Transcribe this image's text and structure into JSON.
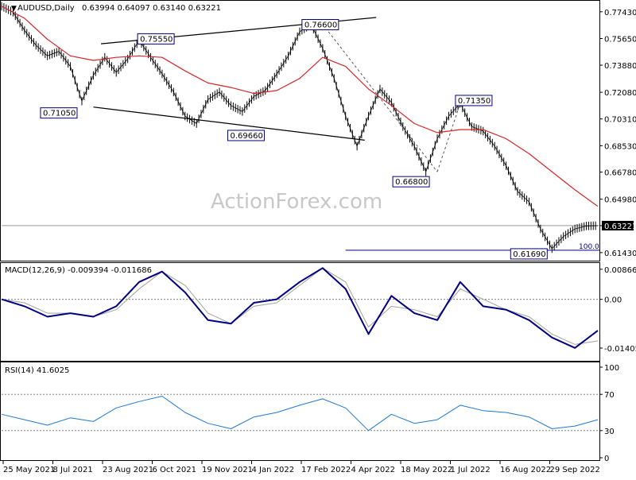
{
  "header": {
    "symbol": "AUDUSD,Daily",
    "ohlc": "0.63994 0.64097 0.63140 0.63221"
  },
  "watermark": "ActionForex.com",
  "colors": {
    "price_line": "#000000",
    "moving_average": "#d62728",
    "macd_line": "#000080",
    "macd_signal": "#a0a0a0",
    "rsi_line": "#1f77d0",
    "zero_line": "#808080",
    "label_border": "#000080"
  },
  "chart_data": [
    {
      "type": "line",
      "panel": "price",
      "title": "AUDUSD,Daily",
      "x_labels": [
        "25 May 2021",
        "8 Jul 2021",
        "23 Aug 2021",
        "6 Oct 2021",
        "19 Nov 2021",
        "4 Jan 2022",
        "17 Feb 2022",
        "4 Apr 2022",
        "18 May 2022",
        "1 Jul 2022",
        "16 Aug 2022",
        "29 Sep 2022"
      ],
      "y_ticks": [
        "0.77430",
        "0.75650",
        "0.73880",
        "0.72080",
        "0.70310",
        "0.68530",
        "0.66780",
        "0.64980",
        "0.63221",
        "0.61430"
      ],
      "ylim": [
        0.61,
        0.78
      ],
      "current_price": 0.63221,
      "series": [
        {
          "x": [
            0,
            6,
            12,
            18,
            24,
            30,
            36,
            42,
            48,
            54,
            60,
            66,
            72,
            78,
            84,
            90,
            96,
            102,
            108,
            114,
            120,
            126,
            132,
            138,
            144,
            150,
            156,
            162,
            168,
            174,
            180,
            186,
            192,
            198,
            204,
            210,
            216,
            222,
            228,
            234,
            240,
            246,
            252,
            258,
            264,
            270,
            276,
            282,
            288,
            294,
            300,
            306,
            312
          ],
          "values": [
            0.778,
            0.774,
            0.762,
            0.752,
            0.745,
            0.748,
            0.738,
            0.715,
            0.732,
            0.744,
            0.734,
            0.743,
            0.7555,
            0.744,
            0.733,
            0.721,
            0.705,
            0.7,
            0.716,
            0.721,
            0.712,
            0.708,
            0.718,
            0.722,
            0.733,
            0.745,
            0.761,
            0.766,
            0.75,
            0.73,
            0.705,
            0.685,
            0.705,
            0.723,
            0.714,
            0.698,
            0.685,
            0.668,
            0.69,
            0.705,
            0.7135,
            0.698,
            0.695,
            0.685,
            0.672,
            0.655,
            0.648,
            0.63,
            0.6169,
            0.625,
            0.63,
            0.632,
            0.6322
          ]
        },
        {
          "x": [
            0,
            12,
            24,
            36,
            48,
            60,
            72,
            84,
            96,
            108,
            120,
            132,
            144,
            156,
            168,
            180,
            192,
            204,
            216,
            228,
            240,
            252,
            264,
            276,
            288,
            300,
            312
          ],
          "values": [
            0.778,
            0.77,
            0.756,
            0.745,
            0.742,
            0.744,
            0.745,
            0.744,
            0.735,
            0.727,
            0.724,
            0.72,
            0.722,
            0.73,
            0.744,
            0.738,
            0.723,
            0.712,
            0.7,
            0.694,
            0.696,
            0.696,
            0.69,
            0.68,
            0.668,
            0.656,
            0.645
          ]
        }
      ],
      "annotations": [
        {
          "text": "0.71050",
          "x": 42,
          "y": 0.7105
        },
        {
          "text": "0.75550",
          "x": 72,
          "y": 0.7555
        },
        {
          "text": "0.69660",
          "x": 120,
          "y": 0.6966
        },
        {
          "text": "0.76600",
          "x": 168,
          "y": 0.766
        },
        {
          "text": "0.66800",
          "x": 228,
          "y": 0.668
        },
        {
          "text": "0.71350",
          "x": 240,
          "y": 0.7135
        },
        {
          "text": "0.61690",
          "x": 288,
          "y": 0.6169
        }
      ],
      "fib_label": "100.0",
      "trendlines": [
        {
          "x": [
            52,
            196
          ],
          "values": [
            0.753,
            0.7705
          ]
        },
        {
          "x": [
            48,
            190
          ],
          "values": [
            0.711,
            0.689
          ]
        }
      ]
    },
    {
      "type": "line",
      "panel": "macd",
      "title": "MACD(12,26,9) -0.009394 -0.011686",
      "y_ticks": [
        "0.008662",
        "0.00",
        "-0.014055"
      ],
      "ylim": [
        -0.0168,
        0.0093
      ],
      "series": [
        {
          "x": [
            0,
            12,
            24,
            36,
            48,
            60,
            72,
            84,
            96,
            108,
            120,
            132,
            144,
            156,
            168,
            180,
            192,
            204,
            216,
            228,
            240,
            252,
            264,
            276,
            288,
            300,
            312
          ],
          "values": [
            0.0,
            -0.002,
            -0.005,
            -0.004,
            -0.005,
            -0.002,
            0.005,
            0.008,
            0.002,
            -0.006,
            -0.007,
            -0.001,
            0.0,
            0.005,
            0.009,
            0.003,
            -0.01,
            0.001,
            -0.004,
            -0.006,
            0.005,
            -0.002,
            -0.003,
            -0.006,
            -0.011,
            -0.014,
            -0.009
          ]
        },
        {
          "x": [
            0,
            12,
            24,
            36,
            48,
            60,
            72,
            84,
            96,
            108,
            120,
            132,
            144,
            156,
            168,
            180,
            192,
            204,
            216,
            228,
            240,
            252,
            264,
            276,
            288,
            300,
            312
          ],
          "values": [
            0.0,
            -0.001,
            -0.004,
            -0.004,
            -0.005,
            -0.003,
            0.003,
            0.008,
            0.004,
            -0.004,
            -0.007,
            -0.002,
            -0.001,
            0.004,
            0.009,
            0.005,
            -0.008,
            -0.002,
            -0.003,
            -0.005,
            0.003,
            0.0,
            -0.003,
            -0.005,
            -0.01,
            -0.013,
            -0.012
          ]
        }
      ]
    },
    {
      "type": "line",
      "panel": "rsi",
      "title": "RSI(14) 41.6025",
      "y_ticks": [
        "100",
        "70",
        "30",
        "0"
      ],
      "ylim": [
        0,
        100
      ],
      "series": [
        {
          "x": [
            0,
            12,
            24,
            36,
            48,
            60,
            72,
            84,
            96,
            108,
            120,
            132,
            144,
            156,
            168,
            180,
            192,
            204,
            216,
            228,
            240,
            252,
            264,
            276,
            288,
            300,
            312
          ],
          "values": [
            48,
            42,
            36,
            44,
            40,
            55,
            62,
            68,
            50,
            38,
            32,
            45,
            50,
            58,
            65,
            55,
            30,
            48,
            38,
            42,
            58,
            52,
            50,
            45,
            32,
            35,
            42
          ]
        }
      ]
    }
  ]
}
